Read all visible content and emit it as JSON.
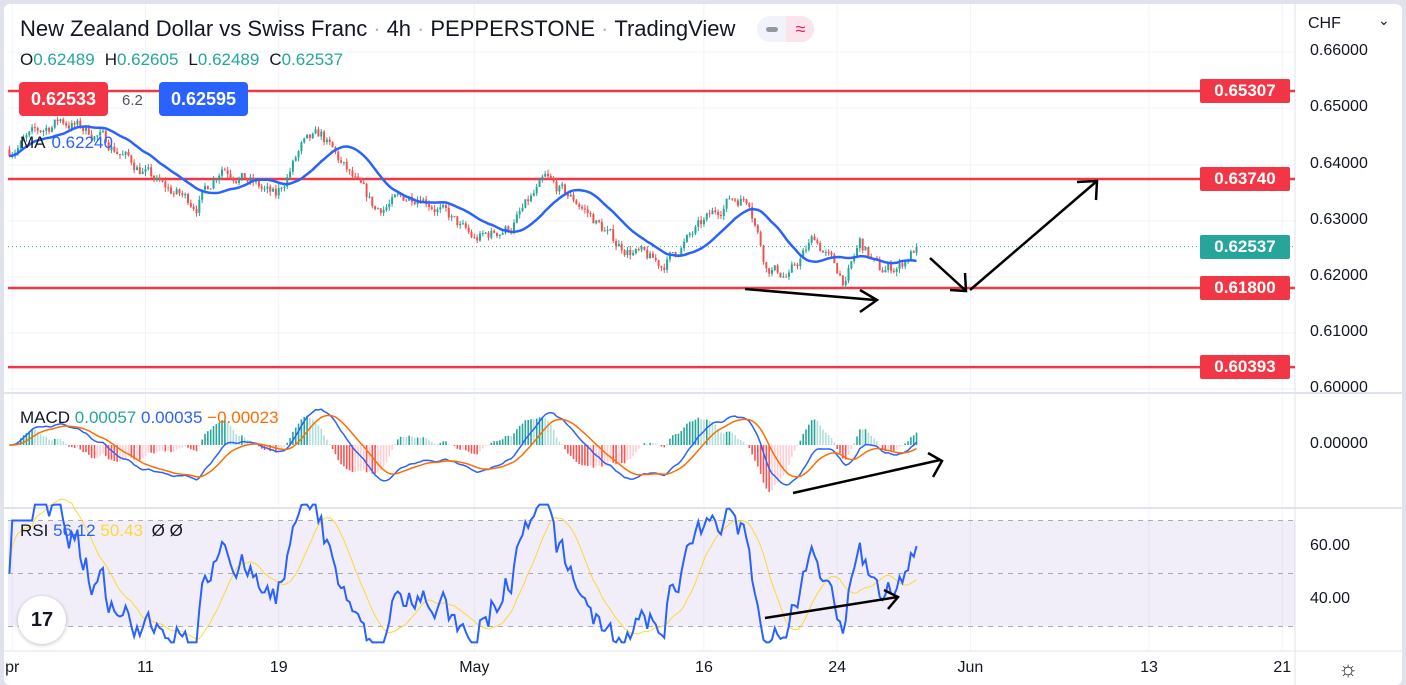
{
  "header": {
    "pair": "New Zealand Dollar vs Swiss Franc",
    "interval": "4h",
    "broker": "PEPPERSTONE",
    "source": "TradingView",
    "toggle_icon": "wave-icon"
  },
  "ohlc": {
    "o_label": "O",
    "o": "0.62489",
    "h_label": "H",
    "h": "0.62605",
    "l_label": "L",
    "l": "0.62489",
    "c_label": "C",
    "c": "0.62537"
  },
  "trade": {
    "sell": "0.62533",
    "spread": "6.2",
    "buy": "0.62595"
  },
  "ma": {
    "label": "MA",
    "value": "0.62240"
  },
  "macd": {
    "label": "MACD",
    "hist": "0.00057",
    "macd": "0.00035",
    "signal": "−0.00023"
  },
  "rsi": {
    "label": "RSI",
    "value": "56.12",
    "ma": "50.43",
    "extra1": "Ø",
    "extra2": "Ø"
  },
  "scale": {
    "currency": "CHF",
    "ticks": [
      "0.66000",
      "0.65000",
      "0.64000",
      "0.63000",
      "0.62000",
      "0.61000",
      "0.60000"
    ],
    "macd_ticks": [
      "0.00000"
    ],
    "rsi_ticks": [
      "60.00",
      "40.00"
    ]
  },
  "colors": {
    "up": "#26a69a",
    "down": "#ef5350",
    "level": "#f23645",
    "ma": "#2962ff",
    "signal": "#ff6d00",
    "rsi": "#2962ff",
    "rsi_ma": "#fdd835"
  },
  "chart_data": {
    "type": "candlestick",
    "title": "New Zealand Dollar vs Swiss Franc · 4h",
    "ylim": [
      0.598,
      0.6615
    ],
    "last_price": "0.62537",
    "levels": [
      {
        "price": 0.65307,
        "label": "0.65307"
      },
      {
        "price": 0.6374,
        "label": "0.63740"
      },
      {
        "price": 0.618,
        "label": "0.61800"
      },
      {
        "price": 0.60393,
        "label": "0.60393"
      }
    ],
    "price_path": [
      [
        0,
        0.6426
      ],
      [
        18,
        0.648
      ],
      [
        32,
        0.645
      ],
      [
        54,
        0.636
      ],
      [
        66,
        0.633
      ],
      [
        75,
        0.64
      ],
      [
        94,
        0.634
      ],
      [
        103,
        0.643
      ],
      [
        110,
        0.645
      ],
      [
        120,
        0.638
      ],
      [
        129,
        0.632
      ],
      [
        145,
        0.635
      ],
      [
        164,
        0.6265
      ],
      [
        177,
        0.629
      ],
      [
        189,
        0.637
      ],
      [
        201,
        0.633
      ],
      [
        214,
        0.626
      ],
      [
        230,
        0.622
      ],
      [
        244,
        0.629
      ],
      [
        254,
        0.634
      ],
      [
        261,
        0.634
      ],
      [
        267,
        0.622
      ],
      [
        275,
        0.62
      ],
      [
        284,
        0.627
      ],
      [
        295,
        0.619
      ],
      [
        300,
        0.626
      ],
      [
        307,
        0.621
      ],
      [
        314,
        0.622
      ],
      [
        320,
        0.6254
      ]
    ],
    "bars_visible": 454,
    "x_ticks": [
      {
        "bar": 1,
        "label": "pr"
      },
      {
        "bar": 48,
        "label": "11"
      },
      {
        "bar": 95,
        "label": "19"
      },
      {
        "bar": 164,
        "label": "May"
      },
      {
        "bar": 245,
        "label": "16"
      },
      {
        "bar": 292,
        "label": "24"
      },
      {
        "bar": 339,
        "label": "Jun"
      },
      {
        "bar": 402,
        "label": "13"
      },
      {
        "bar": 449,
        "label": "21"
      }
    ],
    "rsi_bands": [
      30,
      50,
      70
    ]
  }
}
